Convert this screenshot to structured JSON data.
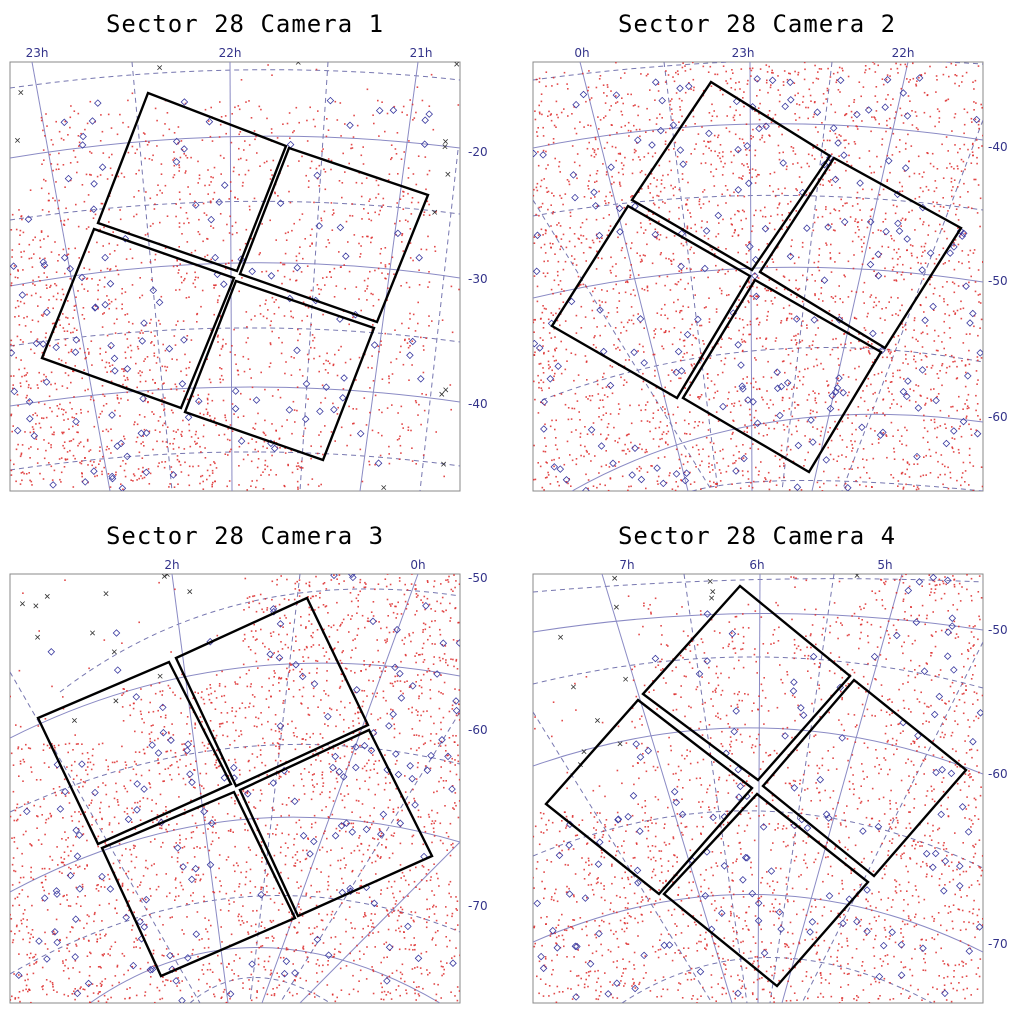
{
  "panels": [
    {
      "title": "Sector 28 Camera 1",
      "ra_labels": [
        "23h",
        "22h",
        "21h"
      ],
      "dec_labels": [
        "-20",
        "-30",
        "-40"
      ],
      "shade_region": "bottom-left",
      "tile_count": 4
    },
    {
      "title": "Sector 28 Camera 2",
      "ra_labels": [
        "0h",
        "23h",
        "22h"
      ],
      "dec_labels": [
        "-40",
        "-50",
        "-60"
      ],
      "shade_region": "most",
      "tile_count": 4
    },
    {
      "title": "Sector 28 Camera 3",
      "ra_labels": [
        "2h",
        "0h"
      ],
      "dec_labels": [
        "-50",
        "-60",
        "-70"
      ],
      "shade_region": "most",
      "tile_count": 4
    },
    {
      "title": "Sector 28 Camera 4",
      "ra_labels": [
        "7h",
        "6h",
        "5h"
      ],
      "dec_labels": [
        "-50",
        "-60",
        "-70"
      ],
      "shade_region": "right-and-center",
      "tile_count": 4
    }
  ],
  "colors": {
    "grid": "#8a8ac4",
    "grid_dash": "#7777b0",
    "star": "#dd2a2a",
    "target": "#3a3aa0",
    "cross": "#333333",
    "ccd_outline": "#000000",
    "label": "#33338a"
  }
}
